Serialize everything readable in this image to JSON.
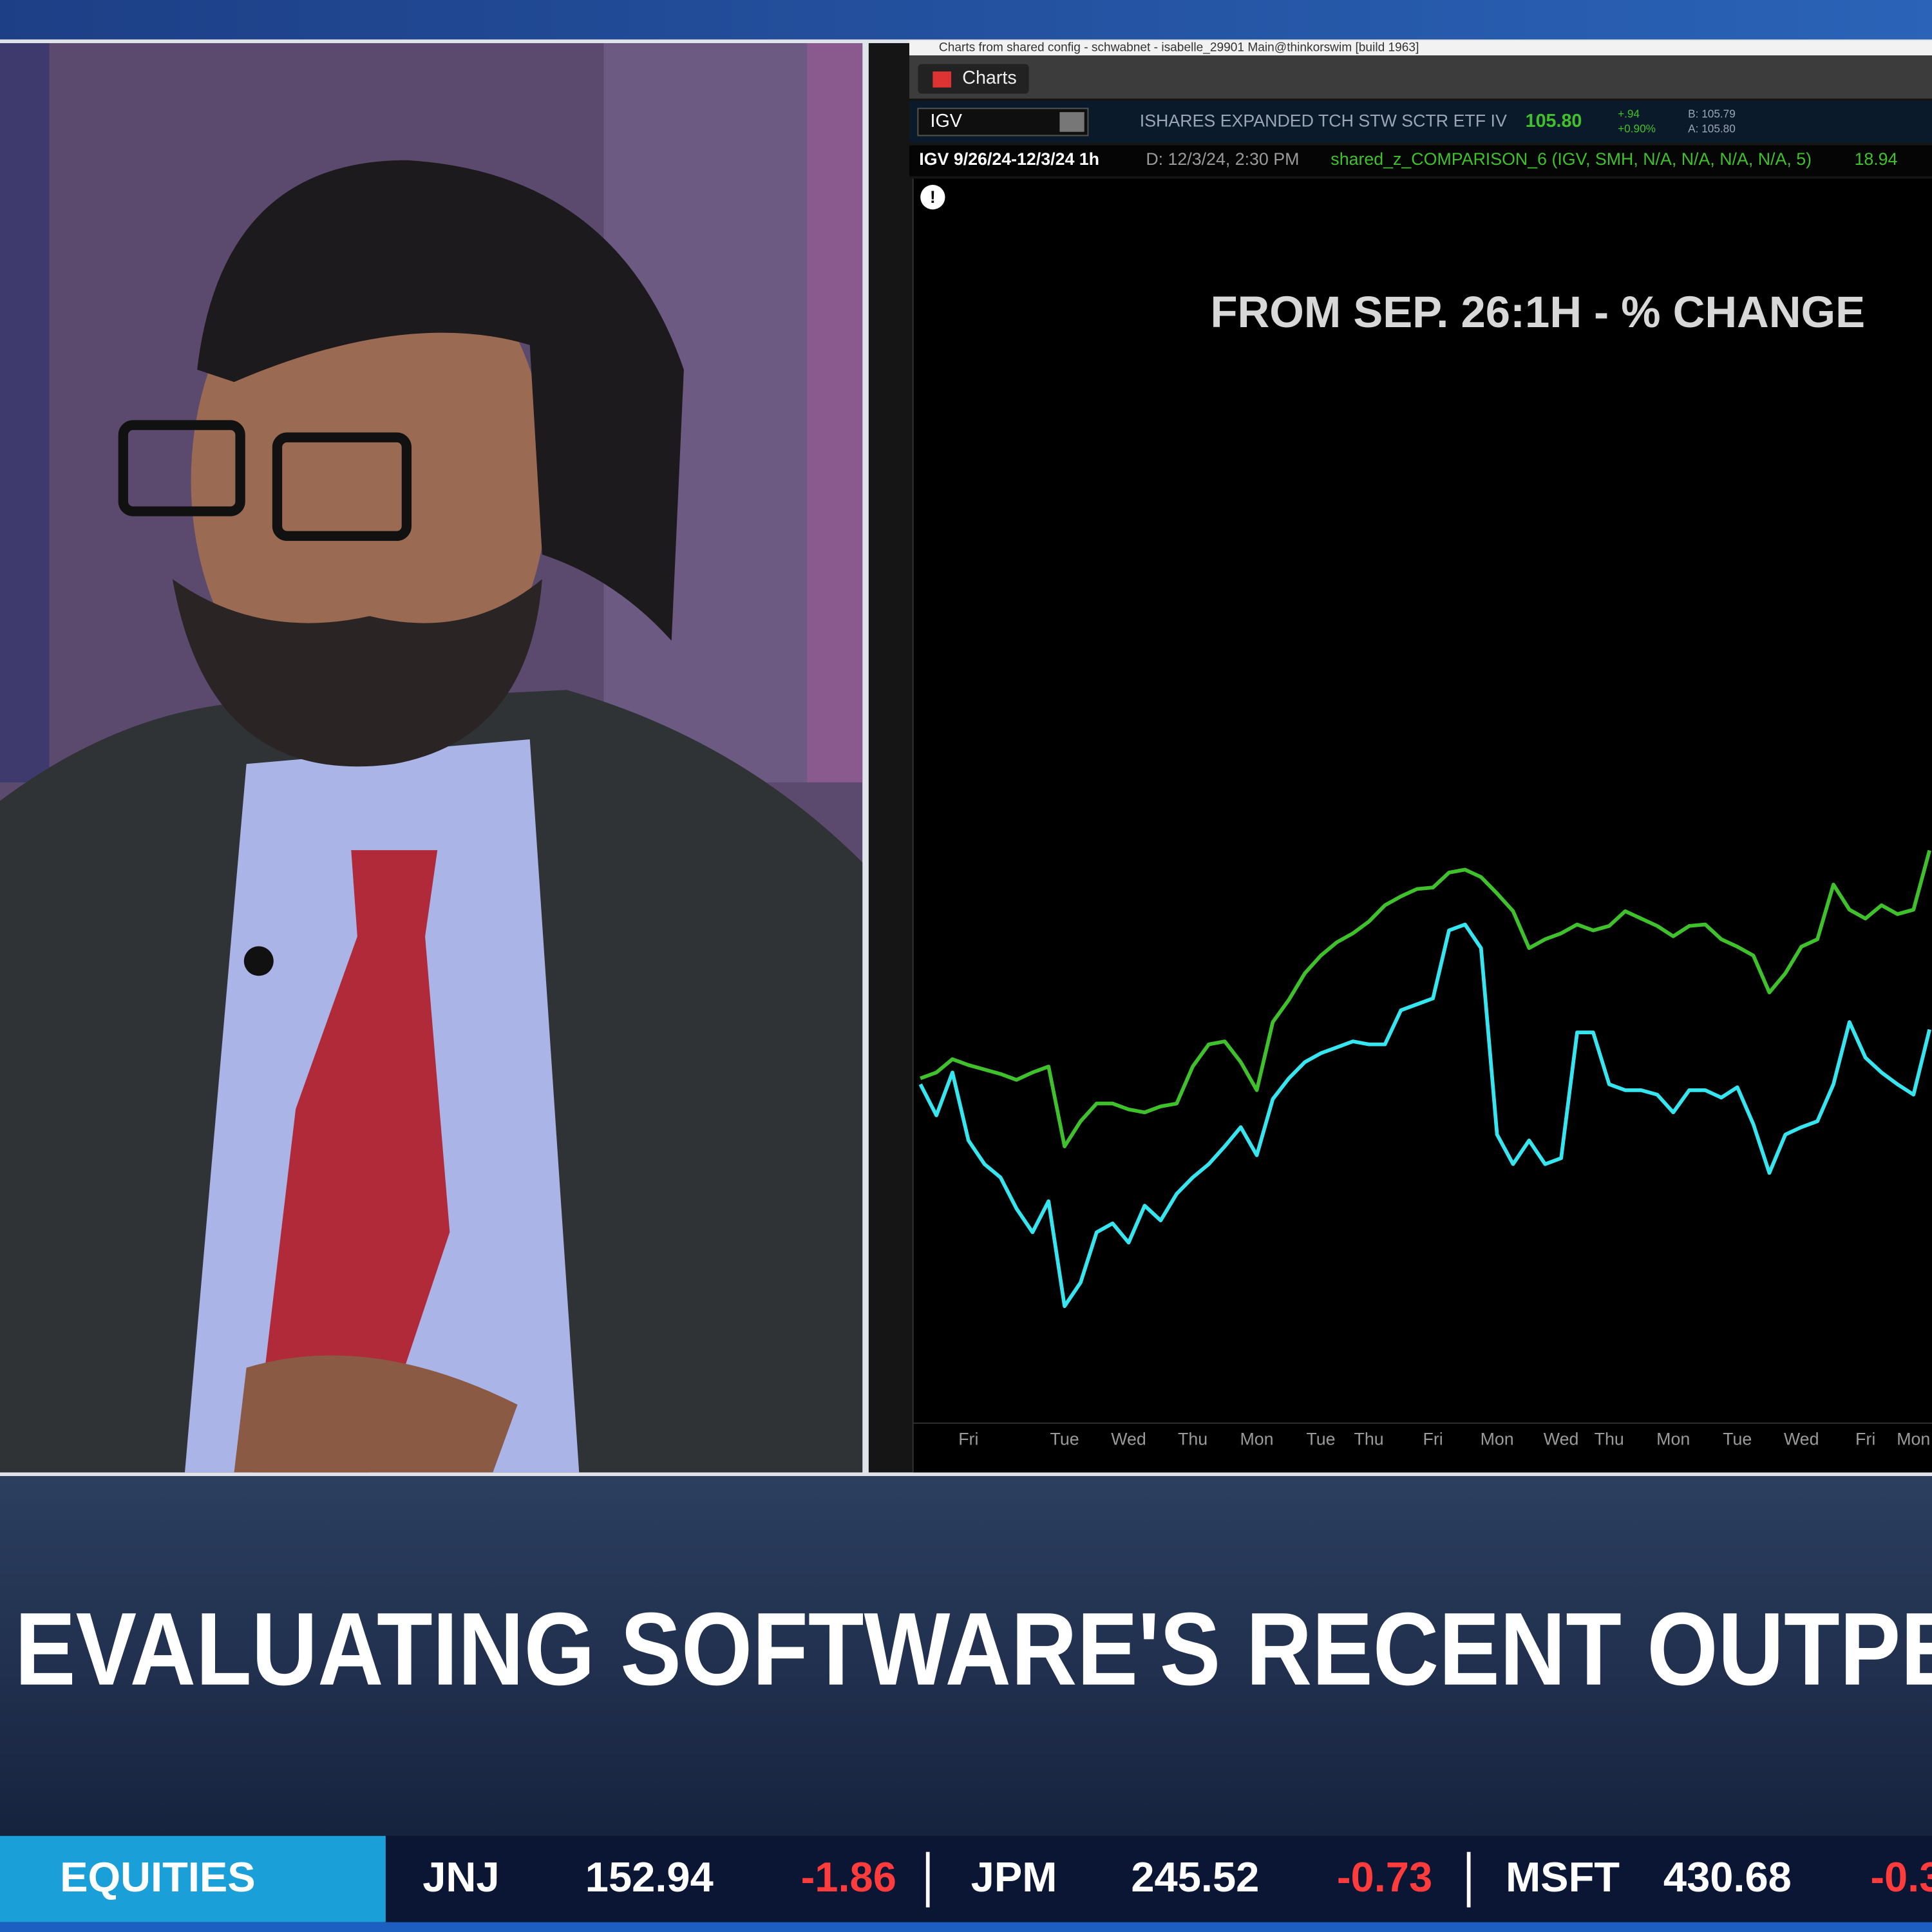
{
  "window_title": "Charts from shared config - schwabnet - isabelle_29901 Main@thinkorswim [build 1963]",
  "tab": "Charts",
  "quote": {
    "symbol": "IGV",
    "description": "ISHARES EXPANDED TCH STW SCTR ETF IV",
    "last": "105.80",
    "change": "+.94",
    "change_pct": "+0.90%",
    "bid": "B: 105.79",
    "ask": "A: 105.80"
  },
  "study_bar": {
    "range": "IGV 9/26/24-12/3/24 1h",
    "date": "D: 12/3/24, 2:30 PM",
    "study": "shared_z_COMPARISON_6 (IGV, SMH, N/A, N/A, N/A, N/A, 5)",
    "study_value": "18.94"
  },
  "chart_data": {
    "type": "line",
    "annotation": "FROM SEP. 26:1H - % CHANGE",
    "categories": [
      null,
      null,
      null,
      "Fri",
      null,
      null,
      null,
      null,
      null,
      "Tue",
      null,
      null,
      null,
      "Wed",
      null,
      null,
      null,
      "Thu",
      null,
      null,
      null,
      "Mon",
      null,
      null,
      null,
      "Tue",
      null,
      null,
      "Thu",
      null,
      null,
      null,
      "Fri",
      null,
      null,
      null,
      "Mon",
      null,
      null,
      null,
      "Wed",
      null,
      null,
      "Thu",
      null,
      null,
      null,
      "Mon",
      null,
      null,
      null,
      "Tue",
      null,
      null,
      null,
      "Wed",
      null,
      null,
      null,
      "Fri",
      null,
      null,
      "Mon",
      null
    ],
    "series": [
      {
        "color": "#3ec12b",
        "values": [
          0,
          0.4,
          1.3,
          0.9,
          0.6,
          0.3,
          -0.1,
          0.4,
          0.8,
          -4.6,
          -2.9,
          -1.7,
          -1.7,
          -2.1,
          -2.3,
          -1.9,
          -1.7,
          0.8,
          2.3,
          2.5,
          1.1,
          -0.8,
          3.8,
          5.3,
          7.1,
          8.3,
          9.2,
          9.8,
          10.6,
          11.7,
          12.3,
          12.8,
          12.9,
          13.9,
          14.1,
          13.6,
          12.5,
          11.3,
          8.8,
          9.4,
          9.8,
          10.4,
          10,
          10.3,
          11.3,
          10.8,
          10.3,
          9.6,
          10.3,
          10.4,
          9.4,
          8.9,
          8.3,
          5.8,
          7.1,
          8.9,
          9.4,
          13.1,
          11.4,
          10.8,
          11.7,
          11.1,
          11.4,
          15.4
        ]
      },
      {
        "color": "#35e6f0",
        "values": [
          -0.4,
          -2.5,
          0.4,
          -4.2,
          -5.8,
          -6.7,
          -8.8,
          -10.4,
          -8.3,
          -15.4,
          -13.8,
          -10.4,
          -9.8,
          -11.1,
          -8.6,
          -9.6,
          -7.8,
          -6.7,
          -5.8,
          -4.6,
          -3.3,
          -5.2,
          -1.4,
          0,
          1.1,
          1.7,
          2.1,
          2.5,
          2.3,
          2.3,
          4.6,
          5,
          5.4,
          10,
          10.4,
          8.8,
          -3.8,
          -5.8,
          -4.2,
          -5.8,
          -5.4,
          3.1,
          3.1,
          -0.4,
          -0.8,
          -0.8,
          -1.1,
          -2.3,
          -0.8,
          -0.8,
          -1.3,
          -0.6,
          -3.1,
          -6.4,
          -3.8,
          -3.3,
          -2.9,
          -0.4,
          3.8,
          1.4,
          0.4,
          -0.4,
          -1.1,
          3.3
        ]
      }
    ],
    "ylim": [
      -23.3,
      60.8
    ]
  },
  "headline": "EVALUATING SOFTWARE'S RECENT OUTPE",
  "ticker": {
    "label": "EQUITIES",
    "items": [
      {
        "symbol": "JNJ",
        "price": "152.94",
        "change": "-1.86"
      },
      {
        "symbol": "JPM",
        "price": "245.52",
        "change": "-0.73"
      },
      {
        "symbol": "MSFT",
        "price": "430.68",
        "change": "-0.3"
      }
    ]
  }
}
